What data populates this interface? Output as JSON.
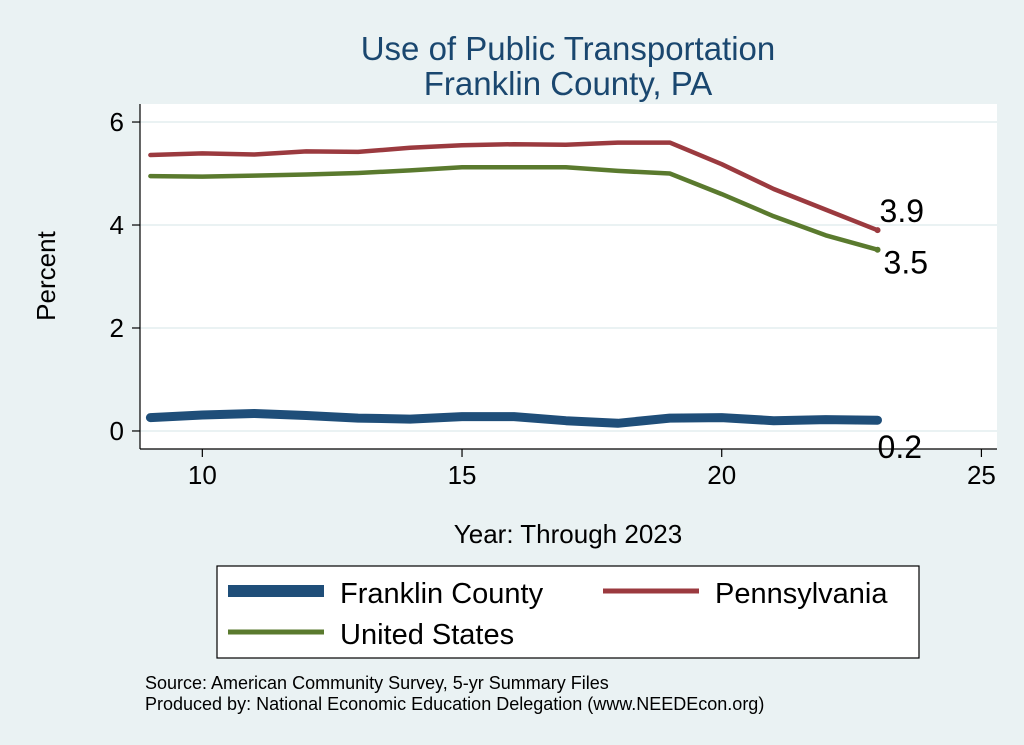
{
  "colors": {
    "background": "#eaf2f3",
    "plot_background": "#ffffff",
    "title": "#1a476f",
    "grid": "#eaf2f3",
    "axis": "#000000",
    "franklin": "#1f4e79",
    "pennsylvania": "#9b3a3f",
    "united_states": "#5a7a2e"
  },
  "chart_data": {
    "type": "line",
    "title": "Use of Public Transportation",
    "subtitle": "Franklin County, PA",
    "xlabel": "Year: Through 2023",
    "ylabel": "Percent",
    "xlim": [
      8.8,
      25.3
    ],
    "ylim": [
      -0.35,
      6.35
    ],
    "xticks": [
      10,
      15,
      20,
      25
    ],
    "yticks": [
      0,
      2,
      4,
      6
    ],
    "grid": true,
    "legend_position": "bottom",
    "x": [
      9,
      10,
      11,
      12,
      13,
      14,
      15,
      16,
      17,
      18,
      19,
      20,
      21,
      22,
      23
    ],
    "series": [
      {
        "name": "Franklin County",
        "key": "franklin",
        "values": [
          0.26,
          0.31,
          0.34,
          0.3,
          0.25,
          0.23,
          0.28,
          0.28,
          0.2,
          0.15,
          0.25,
          0.26,
          0.2,
          0.22,
          0.21
        ],
        "end_label": "0.2"
      },
      {
        "name": "Pennsylvania",
        "key": "pennsylvania",
        "values": [
          5.36,
          5.39,
          5.37,
          5.43,
          5.42,
          5.5,
          5.55,
          5.57,
          5.56,
          5.6,
          5.6,
          5.18,
          4.7,
          4.3,
          3.9
        ],
        "end_label": "3.9"
      },
      {
        "name": "United States",
        "key": "united_states",
        "values": [
          4.95,
          4.94,
          4.96,
          4.98,
          5.01,
          5.06,
          5.12,
          5.12,
          5.12,
          5.05,
          5.0,
          4.6,
          4.17,
          3.8,
          3.52
        ],
        "end_label": "3.5"
      }
    ]
  },
  "footer": {
    "source": "Source: American Community Survey, 5-yr Summary Files",
    "produced": "Produced by: National Economic Education Delegation (www.NEEDEcon.org)"
  }
}
